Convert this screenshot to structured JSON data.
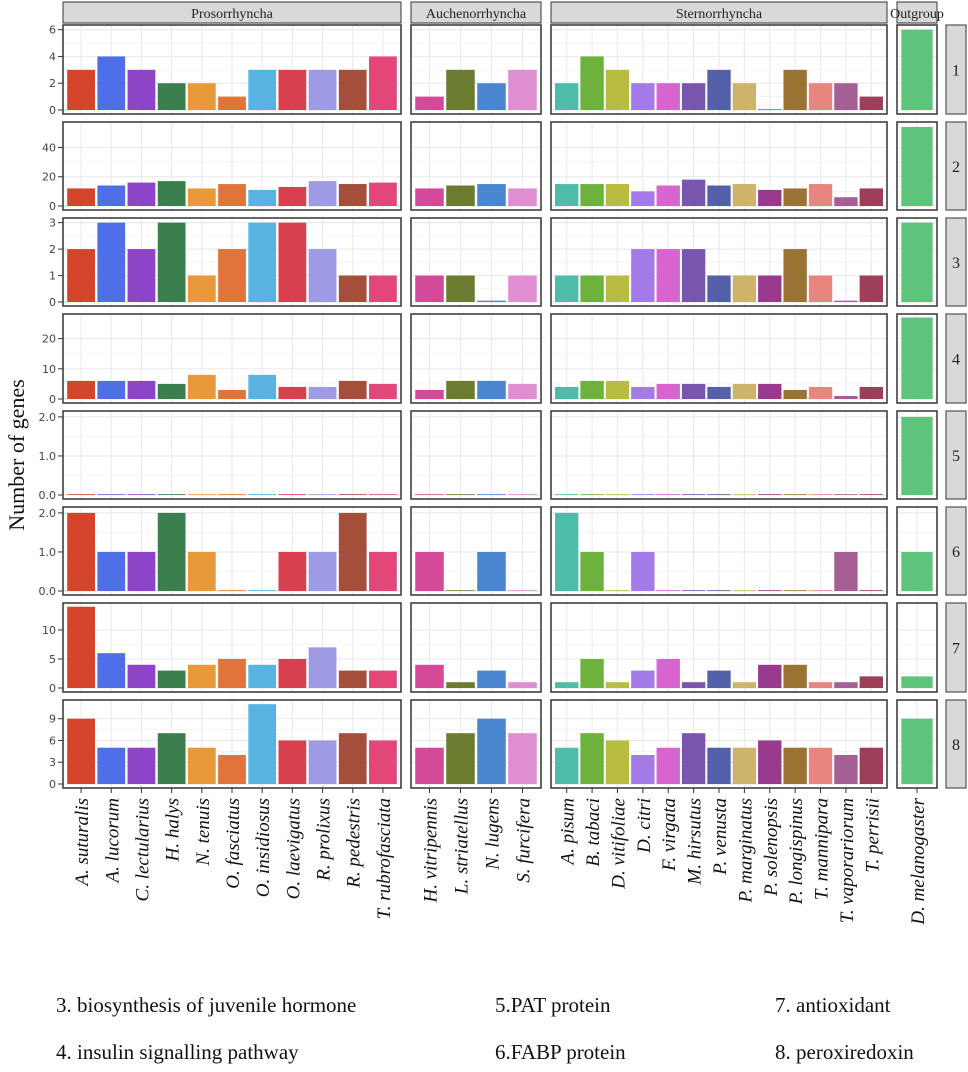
{
  "chart_data": {
    "type": "bar",
    "ylabel": "Number of genes",
    "groups": [
      {
        "name": "Prosorrhyncha",
        "species": [
          "A. suturalis",
          "A. lucorum",
          "C. lectularius",
          "H. halys",
          "N. tenuis",
          "O. fasciatus",
          "O. insidiosus",
          "O. laevigatus",
          "R. prolixus",
          "R. pedestris",
          "T. rubrofasciata"
        ]
      },
      {
        "name": "Auchenorrhyncha",
        "species": [
          "H. vitripennis",
          "L. striatellus",
          "N. lugens",
          "S. furcifera"
        ]
      },
      {
        "name": "Sternorrhyncha",
        "species": [
          "A. pisum",
          "B. tabaci",
          "D. vitifoliae",
          "D. citri",
          "F. virgata",
          "M. hirsutus",
          "P. venusta",
          "P. marginatus",
          "P. solenopsis",
          "P. longispinus",
          "T. mannipara",
          "T. vaporariorum",
          "T. perrisii"
        ]
      },
      {
        "name": "Outgroup",
        "species": [
          "D. melanogaster"
        ]
      }
    ],
    "colors": [
      "#d2452b",
      "#4f6fe6",
      "#8e44c6",
      "#3b7f4f",
      "#e89a3a",
      "#e0743a",
      "#59b3e0",
      "#d9404f",
      "#9e9ae3",
      "#a54e3a",
      "#e3477a",
      "#d44a99",
      "#6b7b30",
      "#4a86cf",
      "#df8ed2",
      "#4dbdaa",
      "#6db23d",
      "#b8bc40",
      "#a47ae6",
      "#d764cf",
      "#7a55ad",
      "#5460a8",
      "#cdb46a",
      "#9a3a8f",
      "#9a7334",
      "#e8857f",
      "#a55f94",
      "#9c3f58",
      "#5ec47c"
    ],
    "panels": [
      {
        "label": "1",
        "ylim": [
          0,
          6.2
        ],
        "ticks": [
          "0",
          "2",
          "4",
          "6"
        ],
        "tick_values": [
          0,
          2,
          4,
          6
        ],
        "values": [
          3,
          4,
          3,
          2,
          2,
          1,
          3,
          3,
          3,
          3,
          4,
          1,
          3,
          2,
          3,
          2,
          4,
          3,
          2,
          2,
          2,
          3,
          2,
          0.05,
          3,
          2,
          2,
          1,
          6
        ]
      },
      {
        "label": "2",
        "ylim": [
          0,
          56
        ],
        "ticks": [
          "0",
          "20",
          "40"
        ],
        "tick_values": [
          0,
          20,
          40
        ],
        "values": [
          12,
          14,
          16,
          17,
          12,
          15,
          11,
          13,
          17,
          15,
          16,
          12,
          14,
          15,
          12,
          15,
          15,
          15,
          10,
          14,
          18,
          14,
          15,
          11,
          12,
          15,
          6,
          12,
          54
        ]
      },
      {
        "label": "3",
        "ylim": [
          0,
          3.1
        ],
        "ticks": [
          "0",
          "1",
          "2",
          "3"
        ],
        "tick_values": [
          0,
          1,
          2,
          3
        ],
        "values": [
          2,
          3,
          2,
          3,
          1,
          2,
          3,
          3,
          2,
          1,
          1,
          1,
          1,
          0.05,
          1,
          1,
          1,
          1,
          2,
          2,
          2,
          1,
          1,
          1,
          2,
          1,
          0.05,
          1,
          3
        ]
      },
      {
        "label": "4",
        "ylim": [
          0,
          27.5
        ],
        "ticks": [
          "0",
          "10",
          "20"
        ],
        "tick_values": [
          0,
          10,
          20
        ],
        "values": [
          6,
          6,
          6,
          5,
          8,
          3,
          8,
          4,
          4,
          6,
          5,
          3,
          6,
          6,
          5,
          4,
          6,
          6,
          4,
          5,
          5,
          4,
          5,
          5,
          3,
          4,
          1,
          4,
          27
        ]
      },
      {
        "label": "5",
        "ylim": [
          0,
          2.1
        ],
        "ticks": [
          "0.0",
          "1.0",
          "2.0"
        ],
        "tick_values": [
          0,
          1,
          2
        ],
        "values": [
          0.02,
          0.02,
          0.02,
          0.02,
          0.02,
          0.02,
          0.02,
          0.02,
          0.02,
          0.02,
          0.02,
          0.02,
          0.02,
          0.02,
          0.02,
          0.02,
          0.02,
          0.02,
          0.02,
          0.02,
          0.02,
          0.02,
          0.02,
          0.02,
          0.02,
          0.02,
          0.02,
          0.02,
          2
        ]
      },
      {
        "label": "6",
        "ylim": [
          0,
          2.1
        ],
        "ticks": [
          "0.0",
          "1.0",
          "2.0"
        ],
        "tick_values": [
          0,
          1,
          2
        ],
        "values": [
          2,
          1,
          1,
          2,
          1,
          0.02,
          0.02,
          1,
          1,
          2,
          1,
          1,
          0.02,
          1,
          0.02,
          2,
          1,
          0.02,
          1,
          0.02,
          0.02,
          0.02,
          0.02,
          0.02,
          0.02,
          0.02,
          1,
          0.02,
          1
        ]
      },
      {
        "label": "7",
        "ylim": [
          0,
          14.3
        ],
        "ticks": [
          "0",
          "5",
          "10"
        ],
        "tick_values": [
          0,
          5,
          10
        ],
        "values": [
          14,
          6,
          4,
          3,
          4,
          5,
          4,
          5,
          7,
          3,
          3,
          4,
          1,
          3,
          1,
          1,
          5,
          1,
          3,
          5,
          1,
          3,
          1,
          4,
          4,
          1,
          1,
          2,
          2
        ]
      },
      {
        "label": "8",
        "ylim": [
          0,
          11.3
        ],
        "ticks": [
          "0",
          "3",
          "6",
          "9"
        ],
        "tick_values": [
          0,
          3,
          6,
          9
        ],
        "values": [
          9,
          5,
          5,
          7,
          5,
          4,
          11,
          6,
          6,
          7,
          6,
          5,
          7,
          9,
          7,
          5,
          7,
          6,
          4,
          5,
          7,
          5,
          5,
          6,
          5,
          5,
          4,
          5,
          9
        ]
      }
    ]
  },
  "legend": [
    {
      "text": "3. biosynthesis of juvenile hormone"
    },
    {
      "text": "4. insulin signalling pathway"
    },
    {
      "text": "5.PAT protein"
    },
    {
      "text": "6.FABP protein"
    },
    {
      "text": "7. antioxidant"
    },
    {
      "text": "8. peroxiredoxin"
    }
  ]
}
